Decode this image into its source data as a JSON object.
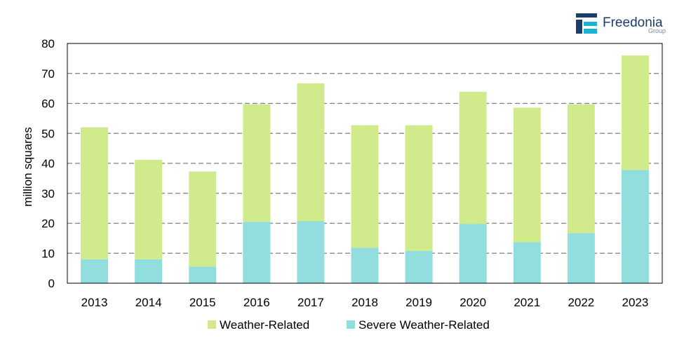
{
  "brand": {
    "name": "Freedonia",
    "sub": "Group",
    "dark_color": "#1b3f6a",
    "accent_color": "#19b3d6"
  },
  "chart_data": {
    "type": "bar",
    "stacked": true,
    "categories": [
      "2013",
      "2014",
      "2015",
      "2016",
      "2017",
      "2018",
      "2019",
      "2020",
      "2021",
      "2022",
      "2023"
    ],
    "series": [
      {
        "name": "Severe Weather-Related",
        "color": "#92dede",
        "values": [
          8,
          8,
          5.5,
          20.5,
          20.7,
          11.8,
          10.8,
          19.8,
          13.7,
          16.7,
          37.8
        ]
      },
      {
        "name": "Weather-Related",
        "color": "#d1eb8c",
        "values": [
          44,
          33.2,
          31.8,
          39.2,
          46,
          40.9,
          41.9,
          44.1,
          44.9,
          43,
          38.2
        ]
      }
    ],
    "legend_order": [
      "Weather-Related",
      "Severe Weather-Related"
    ],
    "ylabel": "million squares",
    "xlabel": "",
    "ylim": [
      0,
      80
    ],
    "yticks": [
      0,
      10,
      20,
      30,
      40,
      50,
      60,
      70,
      80
    ],
    "grid": "horizontal dashed",
    "legend_position": "bottom"
  }
}
